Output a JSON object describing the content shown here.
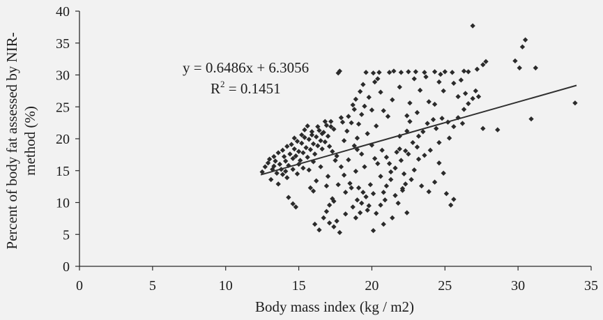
{
  "chart_data": {
    "type": "scatter",
    "xlabel": "Body mass index (kg / m2)",
    "ylabel_lines": [
      "Percent of body fat assessed by NIR-",
      "method  (%)"
    ],
    "xlim": [
      0,
      35
    ],
    "ylim": [
      0,
      40
    ],
    "x_ticks": [
      0,
      5,
      10,
      15,
      20,
      25,
      30,
      35
    ],
    "y_ticks": [
      0,
      5,
      10,
      15,
      20,
      25,
      30,
      35,
      40
    ],
    "x_tick_labels": [
      "0",
      "5",
      "10",
      "15",
      "20",
      "25",
      "30",
      "35"
    ],
    "y_tick_labels": [
      "0",
      "5",
      "10",
      "15",
      "20",
      "25",
      "30",
      "35",
      "40"
    ],
    "grid": false,
    "legend": "none",
    "trendline": {
      "slope": 0.6486,
      "intercept": 6.3056,
      "x_range": [
        12.4,
        34
      ]
    },
    "annotation": {
      "equation": "y = 0.6486x + 6.3056",
      "r2_label": "R",
      "r2_sup": "2",
      "r2_value": " = 0.1451"
    },
    "point_color": "#2b2b2b",
    "points": [
      [
        12.5,
        14.8
      ],
      [
        12.7,
        15.6
      ],
      [
        12.9,
        16.2
      ],
      [
        13.0,
        16.8
      ],
      [
        13.2,
        15.2
      ],
      [
        13.3,
        17.2
      ],
      [
        13.4,
        16.5
      ],
      [
        13.5,
        14.6
      ],
      [
        13.6,
        17.8
      ],
      [
        13.7,
        16.0
      ],
      [
        13.8,
        15.2
      ],
      [
        13.9,
        18.2
      ],
      [
        14.0,
        17.2
      ],
      [
        14.1,
        16.5
      ],
      [
        14.2,
        18.8
      ],
      [
        14.3,
        15.8
      ],
      [
        14.4,
        17.6
      ],
      [
        14.5,
        19.1
      ],
      [
        14.6,
        16.9
      ],
      [
        14.7,
        18.4
      ],
      [
        14.8,
        17.3
      ],
      [
        14.9,
        19.6
      ],
      [
        15.0,
        18.0
      ],
      [
        15.1,
        16.6
      ],
      [
        15.2,
        19.3
      ],
      [
        15.3,
        17.8
      ],
      [
        15.4,
        20.2
      ],
      [
        15.5,
        18.6
      ],
      [
        15.6,
        17.1
      ],
      [
        15.7,
        19.9
      ],
      [
        15.8,
        18.3
      ],
      [
        15.9,
        20.6
      ],
      [
        16.0,
        19.2
      ],
      [
        16.1,
        17.6
      ],
      [
        16.2,
        20.3
      ],
      [
        16.3,
        18.9
      ],
      [
        16.4,
        21.3
      ],
      [
        16.5,
        19.7
      ],
      [
        16.6,
        18.4
      ],
      [
        16.7,
        21.0
      ],
      [
        16.8,
        19.5
      ],
      [
        16.9,
        22.1
      ],
      [
        17.0,
        20.4
      ],
      [
        17.1,
        18.8
      ],
      [
        14.2,
        13.9
      ],
      [
        14.6,
        15.2
      ],
      [
        15.0,
        16.0
      ],
      [
        15.3,
        15.4
      ],
      [
        16.0,
        16.4
      ],
      [
        16.5,
        15.6
      ],
      [
        13.1,
        13.6
      ],
      [
        13.9,
        14.4
      ],
      [
        15.6,
        22.0
      ],
      [
        16.3,
        21.9
      ],
      [
        17.2,
        22.7
      ],
      [
        17.4,
        21.5
      ],
      [
        18.0,
        22.6
      ],
      [
        18.4,
        23.5
      ],
      [
        18.8,
        24.6
      ],
      [
        17.9,
        23.3
      ],
      [
        17.7,
        30.3
      ],
      [
        17.8,
        30.6
      ],
      [
        19.6,
        30.4
      ],
      [
        20.1,
        30.3
      ],
      [
        20.5,
        30.4
      ],
      [
        21.2,
        30.4
      ],
      [
        21.5,
        30.6
      ],
      [
        22.0,
        30.4
      ],
      [
        22.5,
        30.5
      ],
      [
        23.0,
        30.5
      ],
      [
        23.6,
        30.4
      ],
      [
        24.3,
        30.5
      ],
      [
        25.0,
        30.5
      ],
      [
        25.5,
        30.4
      ],
      [
        26.3,
        30.6
      ],
      [
        26.6,
        30.5
      ],
      [
        27.2,
        30.9
      ],
      [
        27.6,
        31.6
      ],
      [
        27.8,
        32.1
      ],
      [
        26.9,
        37.7
      ],
      [
        18.9,
        26.2
      ],
      [
        19.2,
        27.4
      ],
      [
        19.4,
        28.5
      ],
      [
        19.8,
        26.5
      ],
      [
        20.2,
        28.9
      ],
      [
        20.4,
        29.4
      ],
      [
        19.5,
        25.1
      ],
      [
        20.0,
        24.5
      ],
      [
        18.6,
        22.5
      ],
      [
        18.3,
        21.2
      ],
      [
        19.0,
        20.1
      ],
      [
        19.7,
        20.8
      ],
      [
        20.3,
        22.0
      ],
      [
        18.8,
        18.9
      ],
      [
        19.3,
        17.6
      ],
      [
        17.3,
        18.0
      ],
      [
        17.5,
        16.6
      ],
      [
        17.9,
        15.6
      ],
      [
        18.1,
        14.3
      ],
      [
        18.5,
        13.0
      ],
      [
        19.1,
        12.3
      ],
      [
        19.4,
        11.6
      ],
      [
        19.6,
        10.9
      ],
      [
        19.9,
        12.8
      ],
      [
        20.1,
        11.4
      ],
      [
        19.3,
        9.9
      ],
      [
        19.7,
        8.8
      ],
      [
        19.0,
        10.4
      ],
      [
        18.7,
        9.3
      ],
      [
        18.2,
        8.2
      ],
      [
        17.6,
        7.1
      ],
      [
        17.4,
        6.2
      ],
      [
        17.1,
        6.8
      ],
      [
        17.8,
        5.3
      ],
      [
        16.4,
        5.7
      ],
      [
        16.1,
        6.6
      ],
      [
        16.7,
        7.6
      ],
      [
        16.9,
        8.6
      ],
      [
        17.1,
        9.6
      ],
      [
        17.3,
        10.6
      ],
      [
        20.6,
        9.6
      ],
      [
        20.8,
        11.6
      ],
      [
        21.0,
        12.6
      ],
      [
        21.3,
        13.6
      ],
      [
        20.3,
        8.3
      ],
      [
        20.1,
        5.6
      ],
      [
        20.8,
        6.6
      ],
      [
        21.4,
        7.6
      ],
      [
        21.8,
        9.9
      ],
      [
        22.4,
        8.4
      ],
      [
        22.1,
        11.9
      ],
      [
        22.3,
        12.9
      ],
      [
        22.7,
        13.6
      ],
      [
        21.6,
        15.4
      ],
      [
        22.0,
        16.6
      ],
      [
        22.5,
        17.6
      ],
      [
        21.9,
        18.4
      ],
      [
        22.8,
        19.4
      ],
      [
        23.2,
        20.4
      ],
      [
        23.5,
        21.1
      ],
      [
        23.8,
        22.4
      ],
      [
        24.2,
        23.0
      ],
      [
        24.4,
        21.6
      ],
      [
        24.8,
        23.2
      ],
      [
        25.2,
        22.6
      ],
      [
        25.6,
        21.9
      ],
      [
        25.9,
        23.3
      ],
      [
        26.3,
        24.6
      ],
      [
        26.6,
        25.5
      ],
      [
        26.9,
        26.3
      ],
      [
        27.1,
        27.5
      ],
      [
        26.4,
        27.1
      ],
      [
        25.6,
        28.7
      ],
      [
        24.9,
        27.5
      ],
      [
        24.6,
        28.9
      ],
      [
        24.3,
        25.4
      ],
      [
        23.3,
        27.6
      ],
      [
        22.6,
        25.6
      ],
      [
        21.4,
        26.1
      ],
      [
        21.1,
        23.5
      ],
      [
        20.8,
        24.4
      ],
      [
        22.4,
        21.2
      ],
      [
        23.6,
        17.4
      ],
      [
        24.0,
        18.2
      ],
      [
        24.6,
        16.2
      ],
      [
        24.9,
        14.6
      ],
      [
        25.4,
        9.6
      ],
      [
        25.6,
        10.5
      ],
      [
        25.1,
        11.4
      ],
      [
        23.4,
        12.6
      ],
      [
        23.9,
        11.7
      ],
      [
        24.3,
        13.2
      ],
      [
        22.2,
        14.5
      ],
      [
        22.9,
        15.1
      ],
      [
        23.2,
        16.8
      ],
      [
        22.4,
        23.6
      ],
      [
        23.9,
        25.8
      ],
      [
        27.6,
        21.6
      ],
      [
        28.6,
        21.4
      ],
      [
        29.8,
        32.2
      ],
      [
        30.1,
        31.1
      ],
      [
        30.3,
        34.4
      ],
      [
        30.5,
        35.5
      ],
      [
        30.9,
        23.1
      ],
      [
        31.2,
        31.1
      ],
      [
        33.9,
        25.6
      ],
      [
        15.8,
        12.3
      ],
      [
        16.0,
        11.8
      ],
      [
        16.9,
        12.6
      ],
      [
        17.4,
        10.2
      ],
      [
        14.6,
        9.8
      ],
      [
        14.3,
        10.8
      ],
      [
        14.8,
        9.3
      ],
      [
        18.9,
        14.9
      ],
      [
        19.5,
        15.6
      ],
      [
        20.4,
        16.1
      ],
      [
        21.0,
        17.1
      ],
      [
        21.7,
        17.9
      ],
      [
        18.2,
        11.6
      ],
      [
        18.6,
        12.3
      ],
      [
        20.6,
        14.1
      ],
      [
        21.9,
        20.4
      ],
      [
        22.6,
        22.7
      ],
      [
        23.1,
        24.1
      ],
      [
        25.9,
        26.6
      ],
      [
        26.1,
        29.2
      ],
      [
        15.2,
        20.6
      ],
      [
        15.9,
        21.1
      ],
      [
        16.8,
        22.7
      ],
      [
        17.6,
        17.3
      ],
      [
        18.4,
        16.7
      ],
      [
        13.6,
        12.9
      ],
      [
        14.9,
        14.5
      ],
      [
        15.7,
        15.1
      ],
      [
        16.2,
        13.4
      ],
      [
        17.0,
        14.1
      ],
      [
        17.7,
        12.8
      ],
      [
        18.9,
        7.6
      ],
      [
        19.2,
        8.4
      ],
      [
        19.8,
        9.5
      ],
      [
        20.9,
        10.4
      ],
      [
        21.6,
        11.1
      ],
      [
        22.1,
        12.2
      ],
      [
        21.2,
        16.1
      ],
      [
        20.7,
        18.2
      ],
      [
        20.0,
        19.0
      ],
      [
        19.1,
        22.3
      ],
      [
        18.7,
        25.3
      ],
      [
        19.3,
        23.8
      ],
      [
        20.6,
        27.3
      ],
      [
        21.9,
        28.1
      ],
      [
        22.9,
        29.4
      ],
      [
        23.7,
        29.7
      ],
      [
        24.7,
        30.1
      ],
      [
        27.3,
        26.6
      ],
      [
        26.2,
        22.4
      ],
      [
        25.3,
        20.1
      ],
      [
        24.6,
        19.4
      ],
      [
        23.1,
        18.7
      ],
      [
        22.3,
        18.1
      ],
      [
        13.3,
        15.7
      ],
      [
        14.1,
        14.9
      ],
      [
        14.7,
        20.1
      ],
      [
        15.4,
        21.4
      ],
      [
        16.6,
        20.8
      ],
      [
        17.2,
        21.9
      ],
      [
        18.1,
        19.7
      ],
      [
        19.0,
        18.3
      ],
      [
        20.2,
        16.9
      ],
      [
        21.3,
        14.8
      ]
    ]
  }
}
